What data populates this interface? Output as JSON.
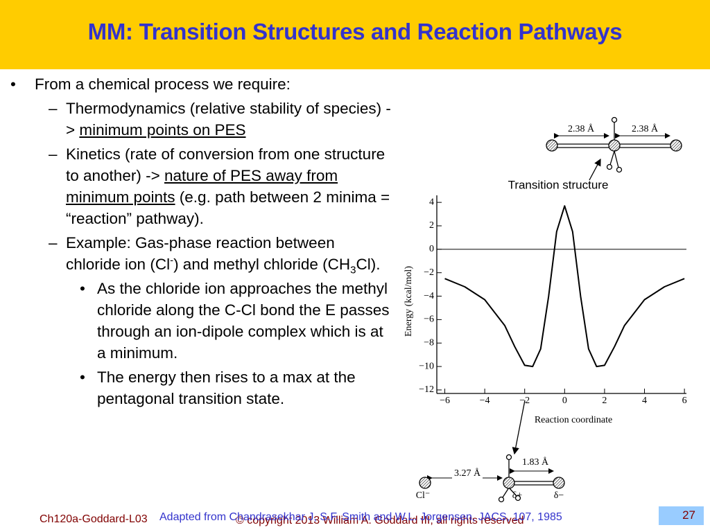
{
  "header": {
    "title": "MM: Transition Structures and Reaction Pathways"
  },
  "body": {
    "bullet": "From a chemical process we require:",
    "items": [
      {
        "parts": [
          "Thermodynamics (relative stability of species) -> ",
          "minimum points on PES"
        ]
      },
      {
        "parts": [
          "Kinetics (rate of conversion from one structure to another) -> ",
          "nature of PES away from minimum points",
          " (e.g. path between 2 minima = “reaction” pathway)."
        ]
      },
      {
        "parts": [
          "Example: Gas-phase reaction between chloride ion (Cl",
          "-",
          ") and methyl chloride (CH",
          "3",
          "Cl)."
        ]
      }
    ],
    "subitems": [
      "As the chloride ion approaches the methyl chloride along the C-Cl bond the E passes through an ion-dipole complex which is at a minimum.",
      "The energy then rises to a max at the pentagonal transition state."
    ]
  },
  "figure": {
    "ylabel": "Energy (kcal/mol)",
    "xlabel": "Reaction coordinate",
    "xlim": [
      -6.4,
      6.1
    ],
    "ylim": [
      -12.3,
      4.6
    ],
    "xticks": [
      {
        "value": -6,
        "label": "−6"
      },
      {
        "value": -4,
        "label": "−4"
      },
      {
        "value": -2,
        "label": "−2"
      },
      0,
      2,
      4,
      6
    ],
    "yticks": [
      4,
      2,
      0,
      {
        "value": -2,
        "label": "−2"
      },
      {
        "value": -4,
        "label": "−4"
      },
      {
        "value": -6,
        "label": "−6"
      },
      {
        "value": -8,
        "label": "−8"
      },
      {
        "value": -10,
        "label": "−10"
      },
      {
        "value": -12,
        "label": "−12"
      }
    ],
    "x": [
      -6,
      -5,
      -4,
      -3,
      -2.5,
      -2,
      -1.6,
      -1.2,
      -0.8,
      -0.4,
      0,
      0.4,
      0.8,
      1.2,
      1.6,
      2,
      2.5,
      3,
      4,
      5,
      6
    ],
    "values": [
      -2.5,
      -3.2,
      -4.3,
      -6.5,
      -8.3,
      -9.9,
      -10,
      -8.5,
      -4,
      1.5,
      3.7,
      1.5,
      -4,
      -8.5,
      -10,
      -9.9,
      -8.3,
      -6.5,
      -4.3,
      -3.2,
      -2.5
    ],
    "annotations": {
      "ts_label": "Transition structure",
      "d1": "2.38 Å",
      "d2": "2.38 Å",
      "d3": "3.27 Å",
      "d4": "1.83 Å",
      "cl": "Cl⁻",
      "dplus": "δ+",
      "dminus": "δ−"
    }
  },
  "footer": {
    "course": "Ch120a-Goddard-L03",
    "copyright": "© copyright 2013 William A. Goddard III, all rights reserved",
    "source": "Adapted from Chandrasekhar J, S.F. Smith and W.L. Jorgensen, JACS, 107, 1985",
    "page": "27"
  }
}
